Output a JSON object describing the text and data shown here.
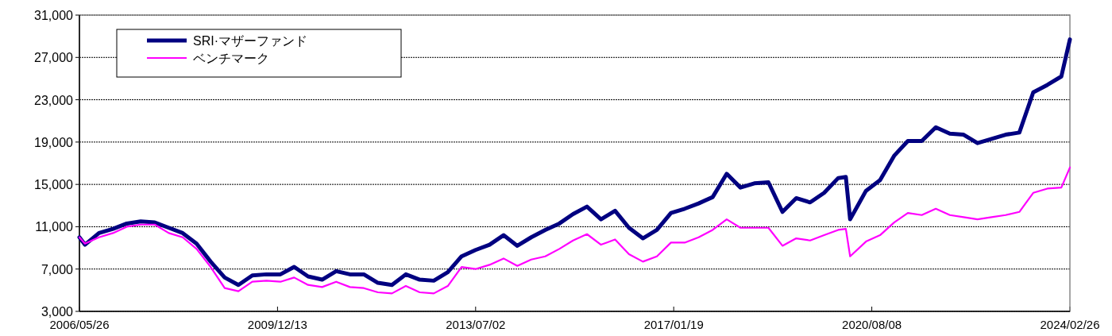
{
  "chart_data": {
    "type": "line",
    "xlim": [
      "2006-05-26",
      "2024-02-26"
    ],
    "ylim": [
      3000,
      31000
    ],
    "xticks": [
      {
        "value": "2006-05-26",
        "label": "2006/05/26"
      },
      {
        "value": "2009-12-13",
        "label": "2009/12/13"
      },
      {
        "value": "2013-07-02",
        "label": "2013/07/02"
      },
      {
        "value": "2017-01-19",
        "label": "2017/01/19"
      },
      {
        "value": "2020-08-08",
        "label": "2020/08/08"
      },
      {
        "value": "2024-02-26",
        "label": "2024/02/26"
      }
    ],
    "yticks": [
      {
        "value": 3000,
        "label": "3,000"
      },
      {
        "value": 7000,
        "label": "7,000"
      },
      {
        "value": 11000,
        "label": "11,000"
      },
      {
        "value": 15000,
        "label": "15,000"
      },
      {
        "value": 19000,
        "label": "19,000"
      },
      {
        "value": 23000,
        "label": "23,000"
      },
      {
        "value": 27000,
        "label": "27,000"
      },
      {
        "value": 31000,
        "label": "31,000"
      }
    ],
    "grid": "y",
    "legend": "top left",
    "line_style": "solid",
    "marker": "none",
    "x": [
      "2006-05-26",
      "2006-07-01",
      "2006-10-01",
      "2007-01-01",
      "2007-04-01",
      "2007-07-01",
      "2007-10-01",
      "2008-01-01",
      "2008-04-01",
      "2008-07-01",
      "2008-10-01",
      "2009-01-01",
      "2009-04-01",
      "2009-07-01",
      "2009-10-01",
      "2010-01-01",
      "2010-04-01",
      "2010-07-01",
      "2010-10-01",
      "2011-01-01",
      "2011-04-01",
      "2011-07-01",
      "2011-10-01",
      "2012-01-01",
      "2012-04-01",
      "2012-07-01",
      "2012-10-01",
      "2013-01-01",
      "2013-04-01",
      "2013-07-01",
      "2013-10-01",
      "2014-01-01",
      "2014-04-01",
      "2014-07-01",
      "2014-10-01",
      "2015-01-01",
      "2015-04-01",
      "2015-07-01",
      "2015-10-01",
      "2016-01-01",
      "2016-04-01",
      "2016-07-01",
      "2016-10-01",
      "2017-01-01",
      "2017-04-01",
      "2017-07-01",
      "2017-10-01",
      "2018-01-01",
      "2018-04-01",
      "2018-07-01",
      "2018-10-01",
      "2019-01-01",
      "2019-04-01",
      "2019-07-01",
      "2019-10-01",
      "2020-01-01",
      "2020-02-20",
      "2020-03-19",
      "2020-07-01",
      "2020-10-01",
      "2021-01-01",
      "2021-04-01",
      "2021-07-01",
      "2021-10-01",
      "2022-01-01",
      "2022-04-01",
      "2022-07-01",
      "2022-10-01",
      "2023-01-01",
      "2023-04-01",
      "2023-07-01",
      "2023-10-01",
      "2024-01-01",
      "2024-02-26"
    ],
    "series": [
      {
        "name": "SRI·マザーファンド",
        "color": "#000080",
        "values": [
          10000,
          9300,
          10400,
          10800,
          11300,
          11500,
          11400,
          10900,
          10400,
          9400,
          7700,
          6200,
          5500,
          6400,
          6500,
          6500,
          7200,
          6300,
          6000,
          6800,
          6500,
          6500,
          5700,
          5500,
          6500,
          6000,
          5900,
          6700,
          8200,
          8800,
          9300,
          10200,
          9200,
          10000,
          10700,
          11300,
          12200,
          12900,
          11700,
          12500,
          10900,
          9900,
          10700,
          12300,
          12700,
          13200,
          13800,
          16000,
          14700,
          15100,
          15200,
          12400,
          13700,
          13300,
          14200,
          15600,
          15700,
          11700,
          14400,
          15400,
          17700,
          19100,
          19100,
          20400,
          19800,
          19700,
          18900,
          19300,
          19700,
          19900,
          23700,
          24400,
          25200,
          28700
        ]
      },
      {
        "name": "ベンチマーク",
        "color": "#ff00ff",
        "values": [
          10000,
          9400,
          10000,
          10400,
          11000,
          11200,
          11200,
          10400,
          10000,
          8900,
          7200,
          5200,
          4900,
          5800,
          5900,
          5800,
          6200,
          5500,
          5300,
          5800,
          5300,
          5200,
          4800,
          4700,
          5400,
          4800,
          4700,
          5400,
          7200,
          7000,
          7400,
          8000,
          7300,
          7900,
          8200,
          8900,
          9700,
          10300,
          9300,
          9800,
          8400,
          7700,
          8200,
          9500,
          9500,
          10000,
          10700,
          11700,
          10900,
          10900,
          10900,
          9200,
          9900,
          9700,
          10200,
          10700,
          10800,
          8200,
          9600,
          10200,
          11400,
          12300,
          12100,
          12700,
          12100,
          11900,
          11700,
          11900,
          12100,
          12400,
          14200,
          14600,
          14700,
          16600
        ]
      }
    ]
  }
}
